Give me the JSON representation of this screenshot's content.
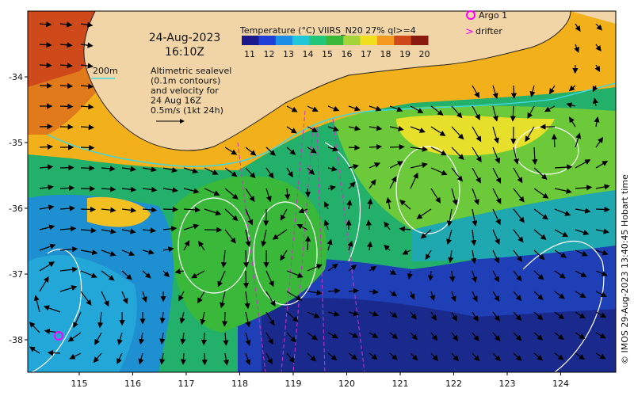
{
  "map": {
    "date": "24-Aug-2023",
    "time": "16:10Z",
    "colorbar_title": "Temperature (°C) VIIRS_N20 27% ql>=4",
    "colorbar_ticks": [
      "11",
      "12",
      "13",
      "14",
      "15",
      "16",
      "17",
      "18",
      "19",
      "20"
    ],
    "colorbar_colors": [
      "#1a1a8c",
      "#1f3fd6",
      "#1e8fe6",
      "#1fc7d9",
      "#22c77a",
      "#3ab83a",
      "#a6d23a",
      "#f2e020",
      "#f59a20",
      "#cf4a1a",
      "#8a1a10"
    ],
    "contour_label": "200m",
    "legend_lines": [
      "Altimetric sealevel",
      "(0.1m contours)",
      "and velocity for",
      "24 Aug 16Z",
      "0.5m/s (1kt 24h)"
    ],
    "lon_ticks": [
      "115",
      "116",
      "117",
      "118",
      "119",
      "120",
      "121",
      "122",
      "123",
      "124"
    ],
    "lat_ticks": [
      "-34",
      "-35",
      "-36",
      "-37",
      "-38"
    ],
    "argo_label": "Argo 1",
    "drifter_label": "drifter",
    "credit": "© IMOS 29-Aug-2023 13:40:45 Hobart time",
    "colors": {
      "land": "#f2d5a7",
      "shelf_contour": "#3fd8e0",
      "marker": "#ff00ff",
      "contour": "#ffffff"
    }
  }
}
